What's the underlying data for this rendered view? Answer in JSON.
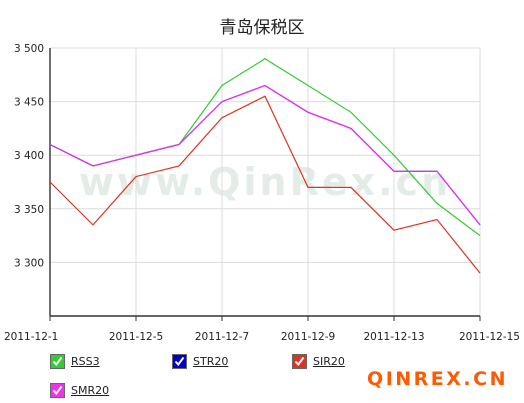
{
  "chart_data": {
    "type": "line",
    "title": "青岛保税区",
    "x": [
      "2011-12-1",
      "2011-12-2",
      "2011-12-5",
      "2011-12-6",
      "2011-12-7",
      "2011-12-8",
      "2011-12-9",
      "2011-12-12",
      "2011-12-13",
      "2011-12-14",
      "2011-12-15"
    ],
    "x_tick_labels": [
      "2011-12-1",
      "2011-12-5",
      "2011-12-7",
      "2011-12-9",
      "2011-12-13",
      "2011-12-15"
    ],
    "y_tick_labels": [
      "3 500",
      "3 450",
      "3 400",
      "3 350",
      "3 300"
    ],
    "ylim": [
      3250,
      3500
    ],
    "grid": true,
    "legend_position": "bottom",
    "series": [
      {
        "name": "RSS3",
        "color": "#33cc33",
        "values": [
          3410,
          3390,
          3400,
          3410,
          3465,
          3490,
          3465,
          3440,
          3400,
          3355,
          3325
        ]
      },
      {
        "name": "STR20",
        "color": "#0000cc",
        "values": [
          3410,
          3390,
          3400,
          3410,
          3450,
          3465,
          3440,
          3425,
          3385,
          3385,
          3335
        ]
      },
      {
        "name": "SIR20",
        "color": "#dd3322",
        "values": [
          3375,
          3335,
          3380,
          3390,
          3435,
          3455,
          3370,
          3370,
          3330,
          3340,
          3290
        ]
      },
      {
        "name": "SMR20",
        "color": "#ee33ee",
        "values": [
          3410,
          3390,
          3400,
          3410,
          3450,
          3465,
          3440,
          3425,
          3385,
          3385,
          3335
        ]
      }
    ]
  },
  "watermark": "www.QinRex.cn",
  "brand": "QINREX.CN"
}
